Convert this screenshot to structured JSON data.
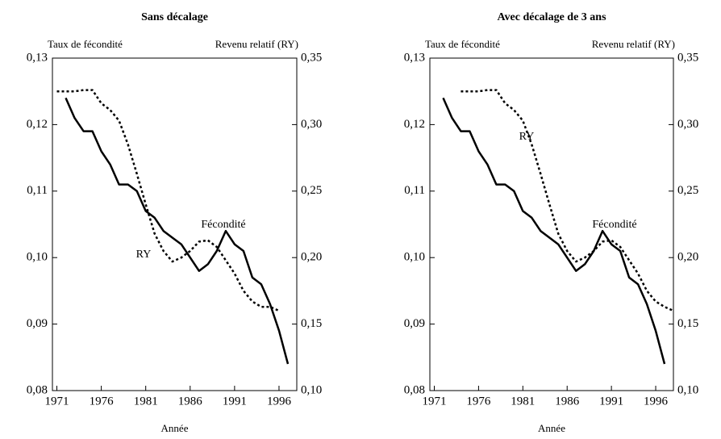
{
  "chart_data": [
    {
      "type": "line",
      "title": "Sans décalage",
      "x_label": "Année",
      "y_label": "Taux de fécondité",
      "y2_label": "Revenu relatif (RY)",
      "xlim": [
        1970.5,
        1998
      ],
      "xticks": [
        1971,
        1976,
        1981,
        1986,
        1991,
        1996
      ],
      "ylim": [
        0.08,
        0.13
      ],
      "yticks": [
        {
          "value": 0.08,
          "label": "0,08"
        },
        {
          "value": 0.09,
          "label": "0,09"
        },
        {
          "value": 0.1,
          "label": "0,10"
        },
        {
          "value": 0.11,
          "label": "0,11"
        },
        {
          "value": 0.12,
          "label": "0,12"
        },
        {
          "value": 0.13,
          "label": "0,13"
        }
      ],
      "y2lim": [
        0.1,
        0.35
      ],
      "y2ticks": [
        {
          "value": 0.1,
          "label": "0,10"
        },
        {
          "value": 0.15,
          "label": "0,15"
        },
        {
          "value": 0.2,
          "label": "0,20"
        },
        {
          "value": 0.25,
          "label": "0,25"
        },
        {
          "value": 0.3,
          "label": "0,30"
        },
        {
          "value": 0.35,
          "label": "0,35"
        }
      ],
      "series": [
        {
          "name": "Fécondité",
          "color": "#000000",
          "style": "solid",
          "x": [
            1972,
            1973,
            1974,
            1975,
            1976,
            1977,
            1978,
            1979,
            1980,
            1981,
            1982,
            1983,
            1984,
            1985,
            1986,
            1987,
            1988,
            1989,
            1990,
            1991,
            1992,
            1993,
            1994,
            1995,
            1996,
            1997
          ],
          "values": [
            0.124,
            0.121,
            0.119,
            0.119,
            0.116,
            0.114,
            0.111,
            0.111,
            0.11,
            0.107,
            0.106,
            0.104,
            0.103,
            0.102,
            0.1,
            0.098,
            0.099,
            0.101,
            0.104,
            0.102,
            0.101,
            0.097,
            0.096,
            0.093,
            0.089,
            0.084
          ]
        },
        {
          "name": "RY",
          "color": "#000000",
          "style": "dotted",
          "axis": "y2",
          "x": [
            1971,
            1972,
            1973,
            1974,
            1975,
            1976,
            1977,
            1978,
            1979,
            1980,
            1981,
            1982,
            1983,
            1984,
            1985,
            1986,
            1987,
            1988,
            1989,
            1990,
            1991,
            1992,
            1993,
            1994,
            1995,
            1996
          ],
          "values": [
            0.325,
            0.325,
            0.325,
            0.326,
            0.326,
            0.316,
            0.311,
            0.303,
            0.285,
            0.263,
            0.24,
            0.218,
            0.205,
            0.197,
            0.2,
            0.205,
            0.212,
            0.213,
            0.208,
            0.198,
            0.188,
            0.175,
            0.167,
            0.163,
            0.163,
            0.16
          ]
        }
      ]
    },
    {
      "type": "line",
      "title": "Avec décalage de 3 ans",
      "x_label": "Année",
      "y_label": "Taux de fécondité",
      "y2_label": "Revenu relatif (RY)",
      "xlim": [
        1970.5,
        1998
      ],
      "xticks": [
        1971,
        1976,
        1981,
        1986,
        1991,
        1996
      ],
      "ylim": [
        0.08,
        0.13
      ],
      "yticks": [
        {
          "value": 0.08,
          "label": "0,08"
        },
        {
          "value": 0.09,
          "label": "0,09"
        },
        {
          "value": 0.1,
          "label": "0,10"
        },
        {
          "value": 0.11,
          "label": "0,11"
        },
        {
          "value": 0.12,
          "label": "0,12"
        },
        {
          "value": 0.13,
          "label": "0,13"
        }
      ],
      "y2lim": [
        0.1,
        0.35
      ],
      "y2ticks": [
        {
          "value": 0.1,
          "label": "0,10"
        },
        {
          "value": 0.15,
          "label": "0,15"
        },
        {
          "value": 0.2,
          "label": "0,20"
        },
        {
          "value": 0.25,
          "label": "0,25"
        },
        {
          "value": 0.3,
          "label": "0,30"
        },
        {
          "value": 0.35,
          "label": "0,35"
        }
      ],
      "series": [
        {
          "name": "Fécondité",
          "color": "#000000",
          "style": "solid",
          "x": [
            1972,
            1973,
            1974,
            1975,
            1976,
            1977,
            1978,
            1979,
            1980,
            1981,
            1982,
            1983,
            1984,
            1985,
            1986,
            1987,
            1988,
            1989,
            1990,
            1991,
            1992,
            1993,
            1994,
            1995,
            1996,
            1997
          ],
          "values": [
            0.124,
            0.121,
            0.119,
            0.119,
            0.116,
            0.114,
            0.111,
            0.111,
            0.11,
            0.107,
            0.106,
            0.104,
            0.103,
            0.102,
            0.1,
            0.098,
            0.099,
            0.101,
            0.104,
            0.102,
            0.101,
            0.097,
            0.096,
            0.093,
            0.089,
            0.084
          ]
        },
        {
          "name": "RY",
          "color": "#000000",
          "style": "dotted",
          "axis": "y2",
          "x": [
            1974,
            1975,
            1976,
            1977,
            1978,
            1979,
            1980,
            1981,
            1982,
            1983,
            1984,
            1985,
            1986,
            1987,
            1988,
            1989,
            1990,
            1991,
            1992,
            1993,
            1994,
            1995,
            1996,
            1997,
            1998
          ],
          "values": [
            0.325,
            0.325,
            0.325,
            0.326,
            0.326,
            0.316,
            0.311,
            0.303,
            0.285,
            0.263,
            0.24,
            0.218,
            0.205,
            0.197,
            0.2,
            0.205,
            0.212,
            0.213,
            0.208,
            0.198,
            0.188,
            0.175,
            0.167,
            0.163,
            0.16
          ]
        }
      ]
    }
  ]
}
